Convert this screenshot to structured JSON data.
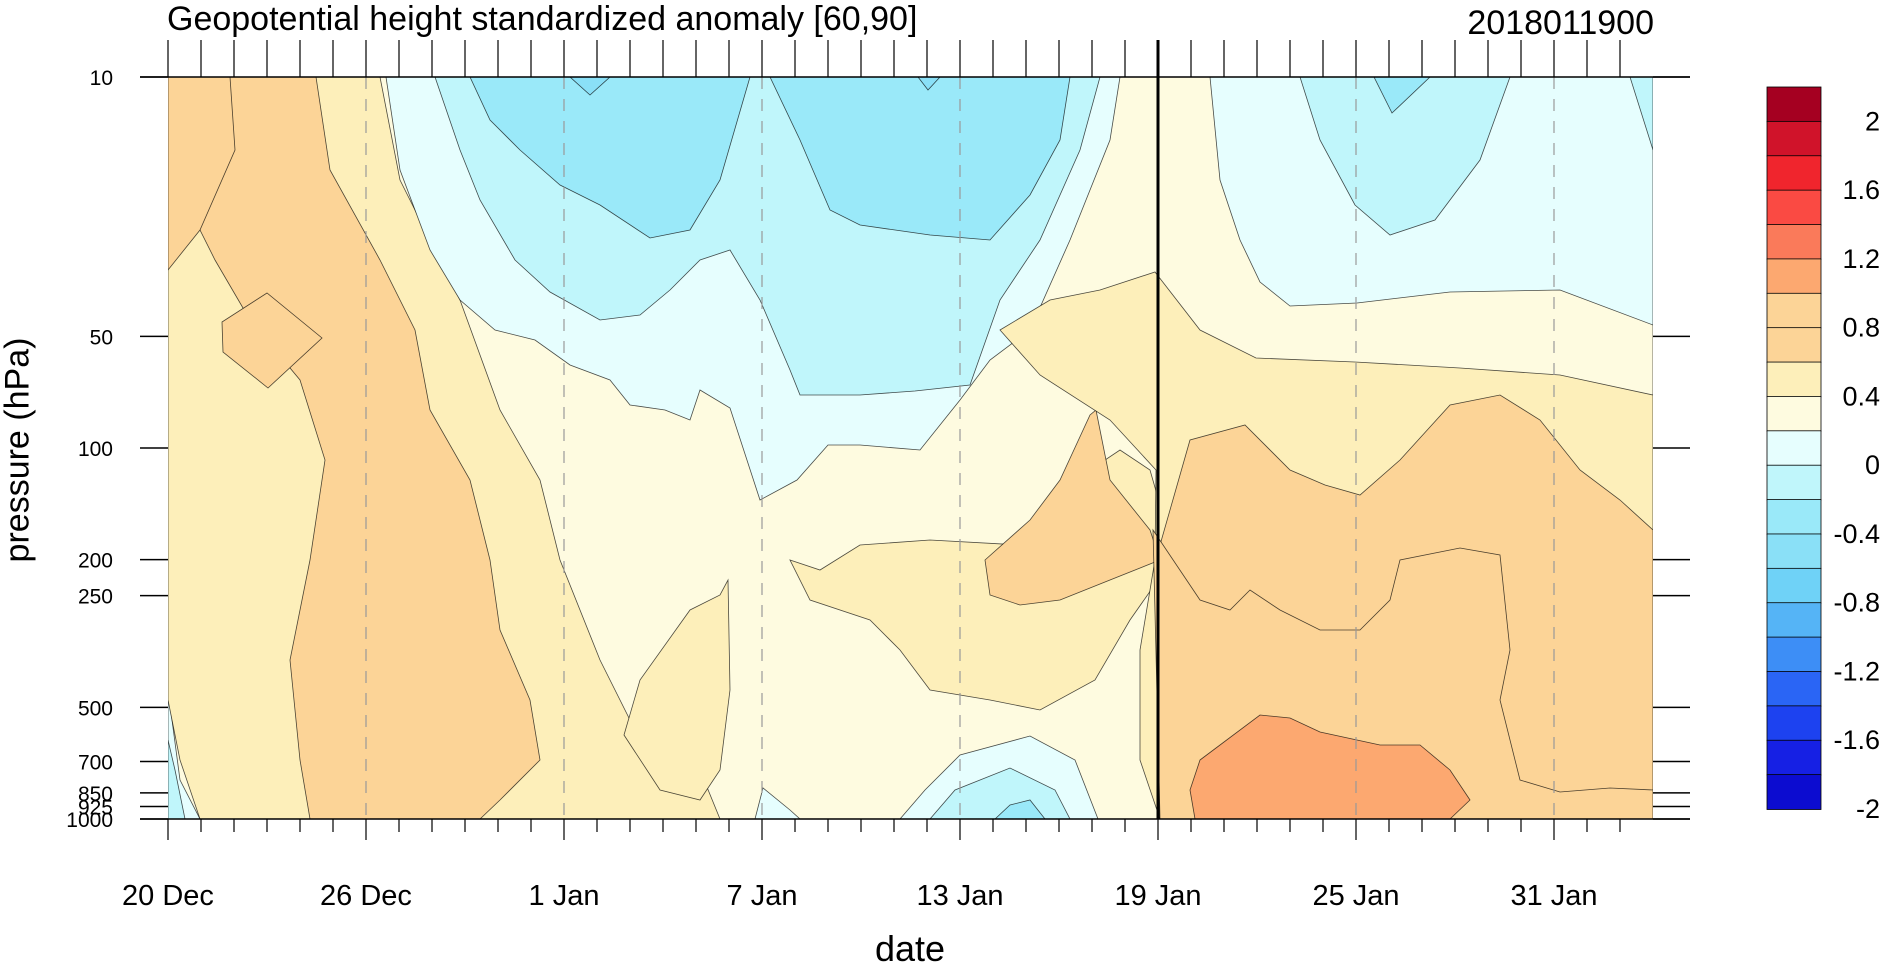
{
  "chart_data": {
    "type": "heatmap",
    "title": "Geopotential height standardized anomaly [60,90]",
    "stamp": "2018011900",
    "xlabel": "date",
    "ylabel": "pressure (hPa)",
    "x_ticks": [
      "20 Dec",
      "26 Dec",
      "1 Jan",
      "7 Jan",
      "13 Jan",
      "19 Jan",
      "25 Jan",
      "31 Jan"
    ],
    "y_ticks": [
      "10",
      "50",
      "100",
      "200",
      "250",
      "500",
      "700",
      "850",
      "925",
      "1000"
    ],
    "y_scale": "log",
    "ylim": [
      1000,
      10
    ],
    "x_range_days": [
      0,
      45
    ],
    "marker_line": "19 Jan",
    "colorbar": {
      "labels": [
        "2",
        "1.6",
        "1.2",
        "0.8",
        "0.4",
        "0",
        "-0.4",
        "-0.8",
        "-1.2",
        "-1.6",
        "-2"
      ],
      "colors": [
        "#a50021",
        "#d0132a",
        "#f0252d",
        "#fa4a43",
        "#fa7a5a",
        "#fca870",
        "#fcd497",
        "#fcd497",
        "#fdefba",
        "#fefbe0",
        "#e6fefe",
        "#c0f6fb",
        "#9ae9f9",
        "#8ae0f7",
        "#6fd2f7",
        "#55b4f6",
        "#3d8ef6",
        "#2a65f5",
        "#1d42f0",
        "#1620e4",
        "#0c0cd0"
      ]
    },
    "colors": {
      "neg3": "#8ae0f7",
      "neg2": "#9ae9f9",
      "neg1": "#c0f6fb",
      "neg0": "#e6fefe",
      "pos0": "#fefbe0",
      "pos1": "#fdefba",
      "pos2": "#fcd497",
      "pos3": "#fca870"
    }
  }
}
